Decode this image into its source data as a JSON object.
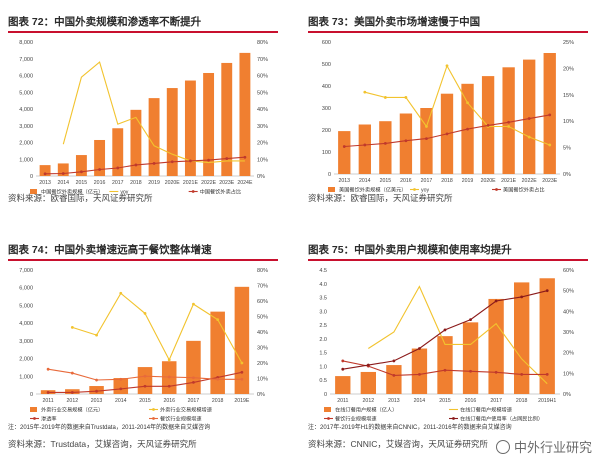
{
  "chart_data": [
    {
      "id": "p1",
      "type": "bar",
      "title": "图表 72：中国外卖规模和渗透率不断提升",
      "categories": [
        "2013",
        "2014",
        "2015",
        "2016",
        "2017",
        "2018",
        "2019",
        "2020E",
        "2021E",
        "2022E",
        "2023E",
        "2024E"
      ],
      "ylim": [
        0,
        8000
      ],
      "y2lim": [
        0,
        0.8
      ],
      "yticks": [
        "0",
        "1,000",
        "2,000",
        "3,000",
        "4,000",
        "5,000",
        "6,000",
        "7,000",
        "8,000"
      ],
      "y2ticks": [
        "0%",
        "10%",
        "20%",
        "30%",
        "40%",
        "50%",
        "60%",
        "70%",
        "80%"
      ],
      "series": [
        {
          "name": "中国餐饮外卖规模（亿元）",
          "kind": "bar",
          "axis": "left",
          "color": "#f07f30",
          "values": [
            650,
            750,
            1250,
            2150,
            2850,
            3950,
            4650,
            5250,
            5700,
            6150,
            6750,
            7350
          ]
        },
        {
          "name": "yoy",
          "kind": "line",
          "axis": "right",
          "color": "#f2c32e",
          "marker": "none",
          "values": [
            null,
            0.19,
            0.59,
            0.68,
            0.31,
            0.35,
            0.18,
            0.13,
            0.09,
            0.08,
            0.09,
            0.09
          ]
        },
        {
          "name": "中国餐饮外卖占比",
          "kind": "line",
          "axis": "right",
          "color": "#c0392b",
          "marker": "dot",
          "values": [
            0.013,
            0.015,
            0.025,
            0.039,
            0.048,
            0.066,
            0.075,
            0.085,
            0.09,
            0.095,
            0.104,
            0.112
          ]
        }
      ],
      "source": "资料来源：欧睿国际，天风证券研究所"
    },
    {
      "id": "p2",
      "type": "bar",
      "title": "图表 73：美国外卖市场增速慢于中国",
      "categories": [
        "2013",
        "2014",
        "2015",
        "2016",
        "2017",
        "2018",
        "2019",
        "2020E",
        "2021E",
        "2022E",
        "2023E"
      ],
      "ylim": [
        0,
        600
      ],
      "y2lim": [
        0,
        0.25
      ],
      "yticks": [
        "0",
        "100",
        "200",
        "300",
        "400",
        "500",
        "600"
      ],
      "y2ticks": [
        "0%",
        "5%",
        "10%",
        "15%",
        "20%",
        "25%"
      ],
      "series": [
        {
          "name": "美国餐饮外卖规模（亿美元）",
          "kind": "bar",
          "axis": "left",
          "color": "#f07f30",
          "values": [
            195,
            225,
            240,
            275,
            300,
            365,
            410,
            445,
            485,
            520,
            550
          ]
        },
        {
          "name": "yoy",
          "kind": "line",
          "axis": "right",
          "color": "#f2c32e",
          "marker": "dot",
          "values": [
            null,
            0.155,
            0.145,
            0.145,
            0.09,
            0.205,
            0.135,
            0.09,
            0.09,
            0.07,
            0.055
          ]
        },
        {
          "name": "美国餐饮外卖占比",
          "kind": "line",
          "axis": "right",
          "color": "#c0392b",
          "marker": "dot",
          "values": [
            0.052,
            0.055,
            0.058,
            0.063,
            0.067,
            0.076,
            0.085,
            0.092,
            0.098,
            0.105,
            0.112
          ]
        }
      ],
      "source": "资料来源：欧睿国际，天风证券研究所"
    },
    {
      "id": "p3",
      "type": "bar",
      "title": "图表 74：中国外卖增速远高于餐饮整体增速",
      "categories": [
        "2011",
        "2012",
        "2013",
        "2014",
        "2015",
        "2016",
        "2017",
        "2018",
        "2019E"
      ],
      "ylim": [
        0,
        7000
      ],
      "y2lim": [
        0,
        0.8
      ],
      "yticks": [
        "0",
        "1,000",
        "2,000",
        "3,000",
        "4,000",
        "5,000",
        "6,000",
        "7,000"
      ],
      "y2ticks": [
        "0%",
        "10%",
        "20%",
        "30%",
        "40%",
        "50%",
        "60%",
        "70%",
        "80%"
      ],
      "series": [
        {
          "name": "外卖行业交易规模（亿元）",
          "kind": "bar",
          "axis": "left",
          "color": "#f07f30",
          "values": [
            215,
            270,
            450,
            900,
            1520,
            1850,
            3000,
            4650,
            6050
          ]
        },
        {
          "name": "外卖行业交易规模增速",
          "kind": "line",
          "axis": "right",
          "color": "#f2c32e",
          "marker": "dot",
          "values": [
            null,
            0.43,
            0.38,
            0.65,
            0.52,
            0.22,
            0.58,
            0.48,
            0.2
          ]
        },
        {
          "name": "渗透率",
          "kind": "line",
          "axis": "right",
          "color": "#c0392b",
          "marker": "dot",
          "values": [
            0.01,
            0.01,
            0.018,
            0.033,
            0.05,
            0.05,
            0.075,
            0.107,
            0.14
          ]
        },
        {
          "name": "餐饮行业规模增速",
          "kind": "line",
          "axis": "right",
          "color": "#e86a3b",
          "marker": "dot",
          "values": [
            0.16,
            0.135,
            0.09,
            0.095,
            0.115,
            0.11,
            0.105,
            0.095,
            0.095
          ]
        }
      ],
      "note": "注：2015年-2019年的数据来自Trustdata，2011-2014年的数据来自艾媒咨询",
      "source": "资料来源：Trustdata，艾媒咨询，天风证券研究所"
    },
    {
      "id": "p4",
      "type": "bar",
      "title": "图表 75：中国外卖用户规模和使用率均提升",
      "categories": [
        "2011",
        "2012",
        "2013",
        "2014",
        "2015",
        "2016",
        "2017",
        "2018",
        "2019H1"
      ],
      "ylim": [
        0,
        4.5
      ],
      "y2lim": [
        0,
        0.6
      ],
      "yticks": [
        "0",
        "0.5",
        "1.0",
        "1.5",
        "2.0",
        "2.5",
        "3.0",
        "3.5",
        "4.0",
        "4.5"
      ],
      "y2ticks": [
        "0%",
        "10%",
        "20%",
        "30%",
        "40%",
        "50%",
        "60%"
      ],
      "series": [
        {
          "name": "在线订餐用户规模（亿人）",
          "kind": "bar",
          "axis": "left",
          "color": "#f07f30",
          "values": [
            0.65,
            0.8,
            1.05,
            1.65,
            2.1,
            2.6,
            3.45,
            4.05,
            4.2
          ]
        },
        {
          "name": "在线订餐用户规模增速",
          "kind": "line",
          "axis": "right",
          "color": "#f2c32e",
          "marker": "none",
          "values": [
            null,
            0.22,
            0.3,
            0.52,
            0.24,
            0.24,
            0.34,
            0.17,
            0.05
          ]
        },
        {
          "name": "餐饮行业规模增速",
          "kind": "line",
          "axis": "right",
          "color": "#c0392b",
          "marker": "dot",
          "values": [
            0.16,
            0.135,
            0.09,
            0.095,
            0.115,
            0.11,
            0.105,
            0.095,
            0.095
          ]
        },
        {
          "name": "在线订餐用户使用率（占网民比例）",
          "kind": "line",
          "axis": "right",
          "color": "#8b1a1a",
          "marker": "dot",
          "values": [
            0.12,
            0.14,
            0.16,
            0.22,
            0.31,
            0.36,
            0.45,
            0.47,
            0.5
          ]
        }
      ],
      "note": "注：2017年-2019年H1的数据来自CNNIC，2011-2016年的数据来自艾媒咨询",
      "source": "资料来源：CNNIC，艾媒咨询，天风证券研究所"
    }
  ],
  "watermark": {
    "text": "中外行业研究"
  }
}
